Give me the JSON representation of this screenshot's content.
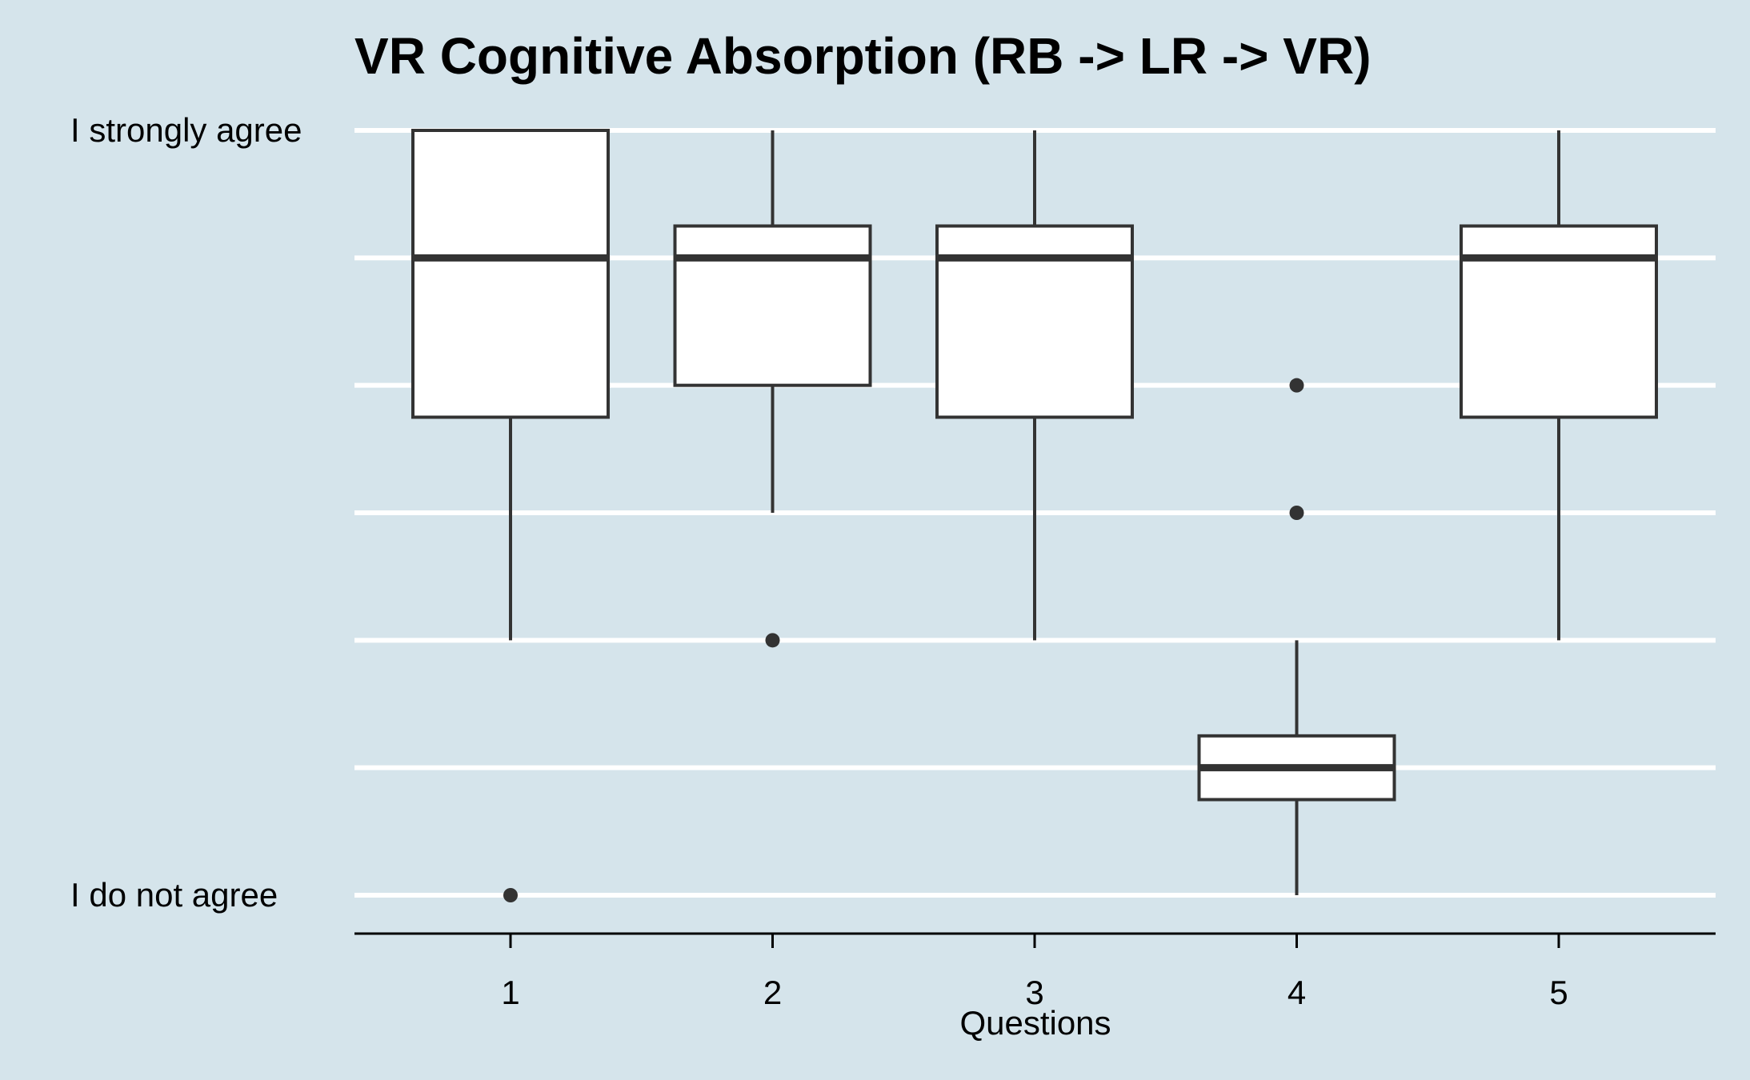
{
  "chart_data": {
    "type": "boxplot",
    "title": "VR Cognitive Absorption (RB -> LR -> VR)",
    "xlabel": "Questions",
    "ylabel": "",
    "categories": [
      "1",
      "2",
      "3",
      "4",
      "5"
    ],
    "y_tick_labels": [
      {
        "value": 7,
        "label": "I strongly agree"
      },
      {
        "value": 1,
        "label": "I do not agree"
      }
    ],
    "ylim": [
      1,
      7
    ],
    "grid": true,
    "boxes": [
      {
        "category": "1",
        "min": 3,
        "q1": 4.75,
        "median": 6,
        "q3": 7,
        "max": 7,
        "outliers": [
          1
        ]
      },
      {
        "category": "2",
        "min": 4,
        "q1": 5,
        "median": 6,
        "q3": 6.25,
        "max": 7,
        "outliers": [
          3
        ]
      },
      {
        "category": "3",
        "min": 3,
        "q1": 4.75,
        "median": 6,
        "q3": 6.25,
        "max": 7,
        "outliers": []
      },
      {
        "category": "4",
        "min": 1,
        "q1": 1.75,
        "median": 2,
        "q3": 2.25,
        "max": 3,
        "outliers": [
          5,
          4
        ]
      },
      {
        "category": "5",
        "min": 3,
        "q1": 4.75,
        "median": 6,
        "q3": 6.25,
        "max": 7,
        "outliers": []
      }
    ],
    "colors": {
      "background": "#d5e4eb",
      "gridline": "#ffffff",
      "box_fill": "#ffffff",
      "box_stroke": "#333333",
      "axis": "#000000"
    }
  }
}
